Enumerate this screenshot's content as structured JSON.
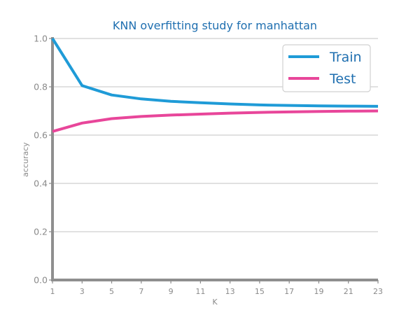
{
  "chart_data": {
    "type": "line",
    "title": "KNN overfitting study for manhattan",
    "xlabel": "K",
    "ylabel": "accuracy",
    "x": [
      1,
      3,
      5,
      7,
      9,
      11,
      13,
      15,
      17,
      19,
      21,
      23
    ],
    "x_tick_labels": [
      "1",
      "3",
      "5",
      "7",
      "9",
      "11",
      "13",
      "15",
      "17",
      "19",
      "21",
      "23"
    ],
    "y_tick_labels": [
      "0.0",
      "0.2",
      "0.4",
      "0.6",
      "0.8",
      "1.0"
    ],
    "xlim": [
      1,
      23
    ],
    "ylim": [
      0,
      1
    ],
    "grid": "horizontal",
    "legend_position": "top-right",
    "series": [
      {
        "name": "Train",
        "color": "#1f9bd7",
        "values": [
          1.0,
          0.805,
          0.766,
          0.75,
          0.74,
          0.734,
          0.729,
          0.725,
          0.723,
          0.721,
          0.72,
          0.719
        ]
      },
      {
        "name": "Test",
        "color": "#e8469a",
        "values": [
          0.615,
          0.65,
          0.668,
          0.677,
          0.683,
          0.687,
          0.691,
          0.694,
          0.696,
          0.698,
          0.699,
          0.7
        ]
      }
    ]
  }
}
